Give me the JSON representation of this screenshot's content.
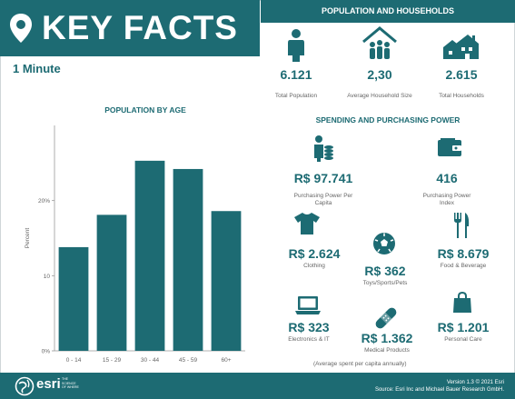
{
  "header": {
    "title": "KEY FACTS",
    "subtitle": "1 Minute"
  },
  "population": {
    "title": "POPULATION AND HOUSEHOLDS",
    "items": [
      {
        "value": "6.121",
        "label": "Total Population",
        "icon": "person-icon"
      },
      {
        "value": "2,30",
        "label": "Average Household Size",
        "icon": "household-icon"
      },
      {
        "value": "2.615",
        "label": "Total Households",
        "icon": "houses-icon"
      }
    ]
  },
  "spending": {
    "title": "SPENDING AND PURCHASING POWER",
    "purchasing_power": {
      "value": "R$ 97.741",
      "label": "Purchasing Power Per Capita"
    },
    "purchasing_index": {
      "value": "416",
      "label": "Purchasing Power Index"
    },
    "clothing": {
      "value": "R$ 2.624",
      "label": "Clothing"
    },
    "toys": {
      "value": "R$ 362",
      "label": "Toys/Sports/Pets"
    },
    "food": {
      "value": "R$ 8.679",
      "label": "Food & Beverage"
    },
    "electronics": {
      "value": "R$ 323",
      "label": "Electronics & IT"
    },
    "medical": {
      "value": "R$ 1.362",
      "label": "Medical Products"
    },
    "personal": {
      "value": "R$ 1.201",
      "label": "Personal Care"
    },
    "note": "(Average spent per capita annually)"
  },
  "chart_data": {
    "type": "bar",
    "title": "POPULATION BY AGE",
    "categories": [
      "0 - 14",
      "15 - 29",
      "30 - 44",
      "45 - 59",
      "60+"
    ],
    "values": [
      13.8,
      18.1,
      25.3,
      24.2,
      18.6
    ],
    "ylabel": "Percent",
    "ylim": [
      0,
      30
    ],
    "yticks": [
      0,
      10,
      20
    ],
    "ytick_labels": [
      "0%",
      "10",
      "20%"
    ],
    "bar_color": "#1d6b73"
  },
  "footer": {
    "brand": "esri",
    "tagline": "THE SCIENCE OF WHERE",
    "version": "Version 1.3 © 2021 Esri",
    "source": "Source: Esri Inc and Michael Bauer Research GmbH."
  },
  "colors": {
    "accent": "#1d6b73"
  }
}
